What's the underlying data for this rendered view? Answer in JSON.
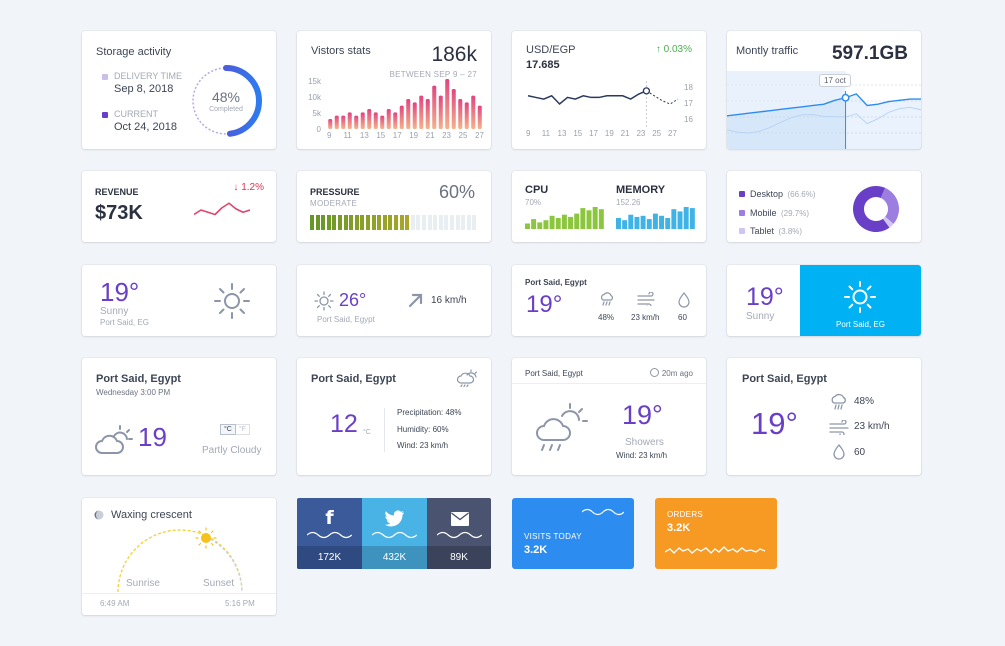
{
  "storage": {
    "title": "Storage activity",
    "delivery_label": "DELIVERY TIME",
    "delivery_date": "Sep 8, 2018",
    "current_label": "CURRENT",
    "current_date": "Oct 24, 2018",
    "percent": "48%",
    "percent_label": "Completed",
    "progress": 48
  },
  "visitors": {
    "title": "Vistors stats",
    "value": "186k",
    "range_label": "BETWEEN SEP 9 – 27",
    "chart_data": {
      "type": "bar",
      "y_ticks": [
        "15k",
        "10k",
        "5k",
        "0"
      ],
      "ylim": [
        0,
        15
      ],
      "x_labels": [
        "9",
        "11",
        "13",
        "15",
        "17",
        "19",
        "21",
        "23",
        "25",
        "27"
      ],
      "values": [
        3,
        4,
        4,
        5,
        4,
        5,
        6,
        5,
        4,
        6,
        5,
        7,
        9,
        8,
        10,
        9,
        13,
        10,
        15,
        12,
        9,
        8,
        10,
        7
      ]
    }
  },
  "usd": {
    "title": "USD/EGP",
    "value": "17.685",
    "change": "0.03%",
    "chart_data": {
      "type": "line",
      "x_labels": [
        "9",
        "11",
        "13",
        "15",
        "17",
        "19",
        "21",
        "23",
        "25",
        "27"
      ],
      "y_ticks": [
        "18",
        "17",
        "16"
      ],
      "ylim": [
        15.6,
        18.4
      ],
      "values": [
        17.5,
        17.4,
        17.3,
        17.5,
        17.0,
        17.4,
        17.3,
        17.5,
        17.4,
        17.4,
        17.5,
        17.5,
        17.5,
        17.3,
        17.6,
        17.8
      ],
      "forecast": [
        17.8,
        17.5,
        17.2,
        17.0,
        17.3
      ]
    }
  },
  "traffic": {
    "title": "Montly traffic",
    "value": "597.1GB",
    "tooltip": "17 oct",
    "chart_data": {
      "type": "area",
      "values": [
        18,
        19,
        20,
        21,
        22,
        23,
        24,
        25,
        26,
        27,
        30,
        32,
        35,
        26,
        27,
        29,
        30,
        31,
        31
      ]
    }
  },
  "revenue": {
    "title": "REVENUE",
    "value": "$73K",
    "change": "1.2%",
    "chart_data": {
      "type": "line",
      "values": [
        4,
        8,
        6,
        4,
        10,
        14,
        9,
        6,
        8
      ]
    }
  },
  "pressure": {
    "title": "PRESSURE",
    "subtitle": "MODERATE",
    "value": "60%",
    "level": 60
  },
  "cpu": {
    "title": "CPU",
    "value": "70%",
    "chart_data": {
      "type": "bar",
      "values": [
        5,
        9,
        6,
        8,
        12,
        10,
        13,
        11,
        14,
        19,
        17,
        20,
        18
      ]
    }
  },
  "memory": {
    "title": "MEMORY",
    "value": "152.26",
    "chart_data": {
      "type": "bar",
      "values": [
        10,
        8,
        13,
        11,
        12,
        9,
        14,
        12,
        10,
        18,
        16,
        20,
        19
      ]
    }
  },
  "devices": {
    "items": [
      {
        "label": "Desktop",
        "value": "(66.6%)",
        "color": "#6a3fc8",
        "share": 66.6
      },
      {
        "label": "Mobile",
        "value": "(29.7%)",
        "color": "#9c7de0",
        "share": 29.7
      },
      {
        "label": "Tablet",
        "value": "(3.8%)",
        "color": "#d1c4f2",
        "share": 3.8
      }
    ]
  },
  "weather1": {
    "temp": "19°",
    "cond": "Sunny",
    "city": "Port Said, EG"
  },
  "weather2": {
    "temp": "26°",
    "city": "Port Said, Egypt",
    "wind": "16 km/h"
  },
  "weather3": {
    "city": "Port Said, Egypt",
    "temp": "19°",
    "humidity": "48%",
    "wind": "23 km/h",
    "drop": "60"
  },
  "weather4": {
    "temp": "19°",
    "cond": "Sunny",
    "city": "Port Said, EG"
  },
  "weather5": {
    "city": "Port Said, Egypt",
    "day": "Wednesday 3:00 PM",
    "temp": "19",
    "unit_c": "°C",
    "unit_f": "°F",
    "cond": "Partly Cloudy"
  },
  "weather6": {
    "city": "Port Said, Egypt",
    "temp": "12",
    "unit": "°C",
    "precip": "Precipitation: 48%",
    "humidity": "Humidity: 60%",
    "wind": "Wind: 23 km/h"
  },
  "weather7": {
    "city": "Port Said, Egypt",
    "ago": "20m ago",
    "temp": "19°",
    "cond": "Showers",
    "wind": "Wind: 23 km/h"
  },
  "weather8": {
    "city": "Port Said, Egypt",
    "temp": "19°",
    "humidity": "48%",
    "wind": "23 km/h",
    "drop": "60"
  },
  "moon": {
    "phase": "Waxing crescent",
    "sunrise": "Sunrise",
    "sunset": "Sunset",
    "sunrise_time": "6:49 AM",
    "sunset_time": "5:16 PM"
  },
  "social": {
    "facebook": {
      "count": "172K",
      "color": "#3b5a9a",
      "dark": "#2f4a80"
    },
    "twitter": {
      "count": "432K",
      "color": "#4ab3e6",
      "dark": "#3d93be"
    },
    "email": {
      "count": "89K",
      "color": "#4a5470",
      "dark": "#3b435a"
    }
  },
  "visits": {
    "title": "VISITS TODAY",
    "value": "3.2K",
    "color": "#2d8cf0"
  },
  "orders": {
    "title": "ORDERS",
    "value": "3.2K",
    "color": "#f79a23"
  }
}
